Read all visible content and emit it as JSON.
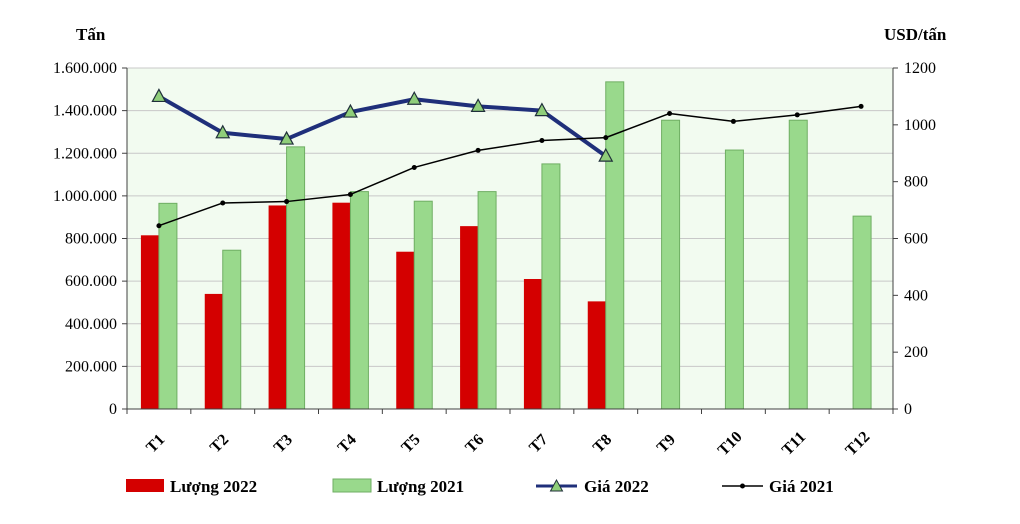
{
  "chart_data": {
    "type": "bar",
    "categories": [
      "T1",
      "T2",
      "T3",
      "T4",
      "T5",
      "T6",
      "T7",
      "T8",
      "T9",
      "T10",
      "T11",
      "T12"
    ],
    "y_left": {
      "label": "Tấn",
      "range": [
        0,
        1600000
      ],
      "ticks": [
        0,
        200000,
        400000,
        600000,
        800000,
        1000000,
        1200000,
        1400000,
        1600000
      ],
      "tick_labels": [
        "0",
        "200.000",
        "400.000",
        "600.000",
        "800.000",
        "1.000.000",
        "1.200.000",
        "1.400.000",
        "1.600.000"
      ]
    },
    "y_right": {
      "label": "USD/tấn",
      "range": [
        0,
        1200
      ],
      "ticks": [
        0,
        200,
        400,
        600,
        800,
        1000,
        1200
      ],
      "tick_labels": [
        "0",
        "200",
        "400",
        "600",
        "800",
        "1000",
        "1200"
      ]
    },
    "series": [
      {
        "name": "Lượng 2022",
        "kind": "bar",
        "axis": "left",
        "color": "#d40000",
        "values": [
          815000,
          540000,
          955000,
          968000,
          738000,
          858000,
          610000,
          505000,
          null,
          null,
          null,
          null
        ]
      },
      {
        "name": "Lượng 2021",
        "kind": "bar",
        "axis": "left",
        "color": "#99d98c",
        "values": [
          965000,
          745000,
          1230000,
          1020000,
          975000,
          1020000,
          1150000,
          1535000,
          1355000,
          1215000,
          1355000,
          905000
        ]
      },
      {
        "name": "Giá 2022",
        "kind": "line",
        "axis": "right",
        "color": "#1f2f7a",
        "marker": "triangle",
        "values": [
          1100,
          972,
          950,
          1045,
          1090,
          1065,
          1050,
          890,
          null,
          null,
          null,
          null
        ]
      },
      {
        "name": "Giá 2021",
        "kind": "line",
        "axis": "right",
        "color": "#000000",
        "marker": "dot",
        "values": [
          645,
          725,
          730,
          755,
          850,
          910,
          945,
          955,
          1040,
          1012,
          1035,
          1065
        ]
      }
    ],
    "grid": "horizontal",
    "legend": "bottom"
  }
}
